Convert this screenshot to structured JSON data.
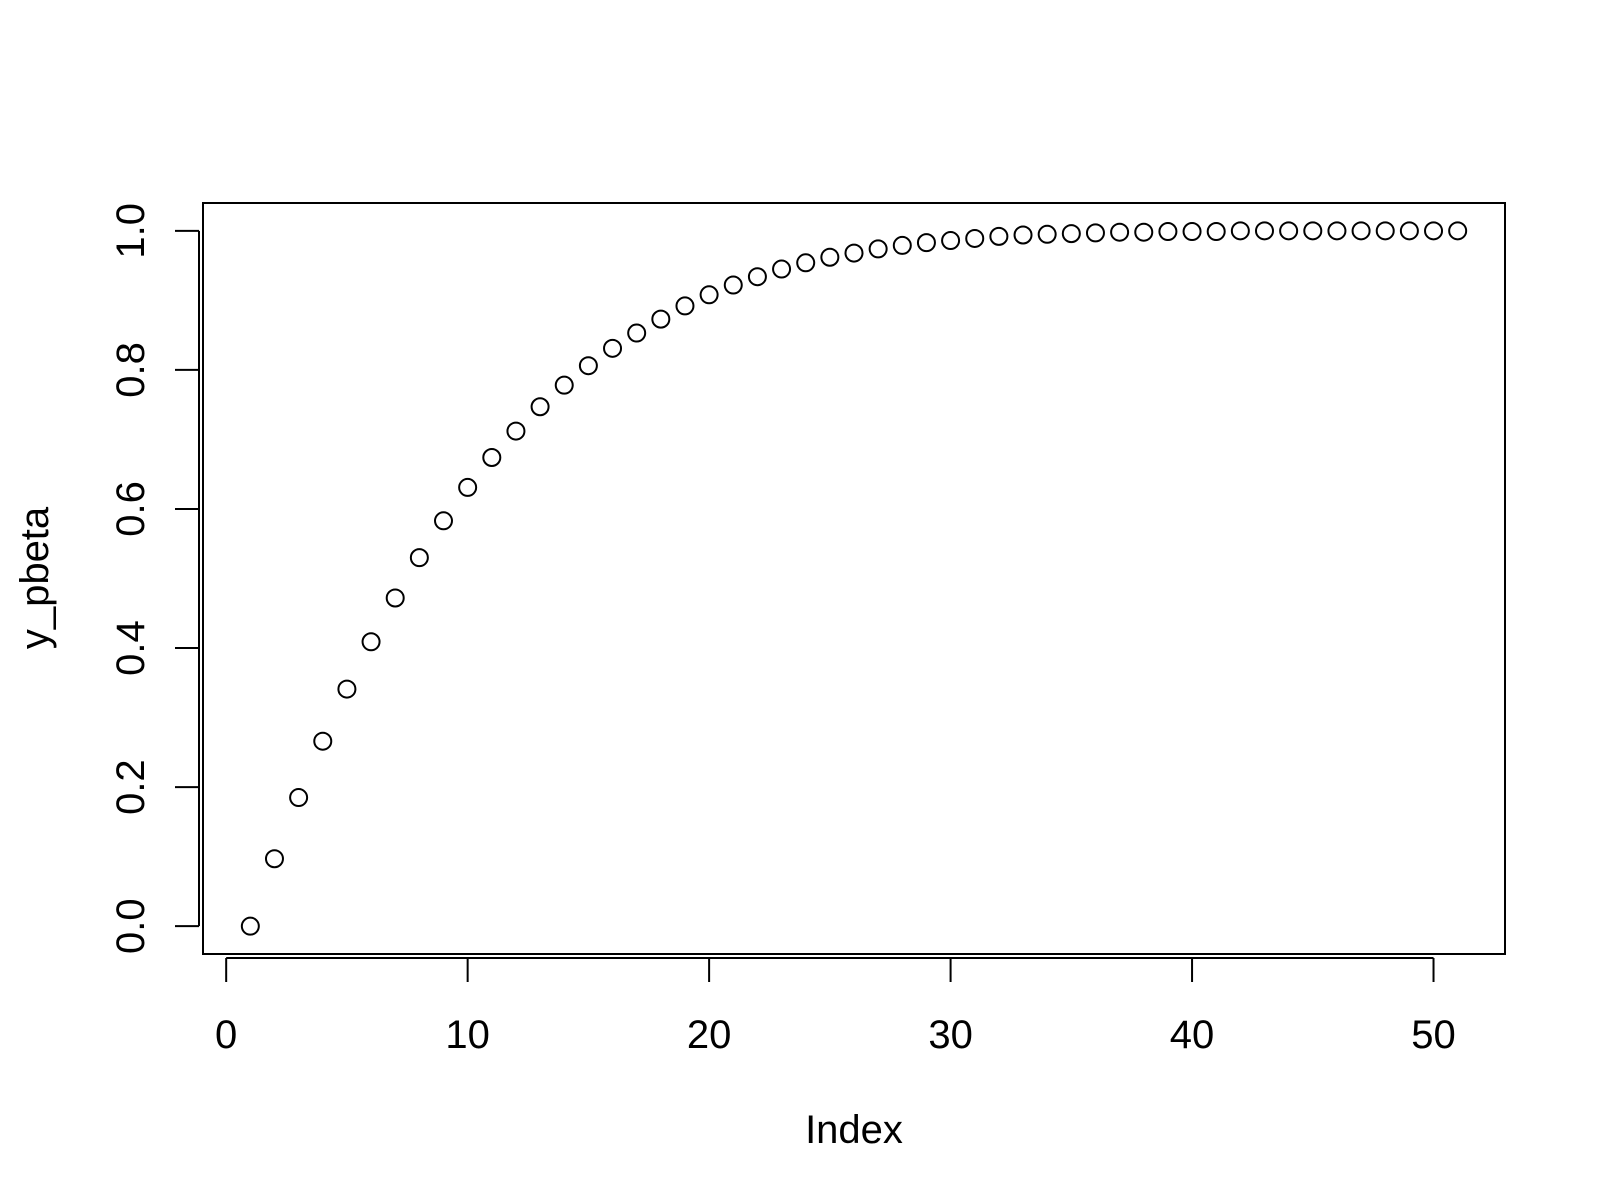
{
  "chart_data": {
    "type": "scatter",
    "xlabel": "Index",
    "ylabel": "y_pbeta",
    "xlim": [
      -0.96,
      52.96
    ],
    "ylim": [
      -0.04,
      1.04
    ],
    "x_ticks": [
      0,
      10,
      20,
      30,
      40,
      50
    ],
    "x_tick_labels": [
      "0",
      "10",
      "20",
      "30",
      "40",
      "50"
    ],
    "y_ticks": [
      0,
      0.2,
      0.4,
      0.6,
      0.8,
      1.0
    ],
    "y_tick_labels": [
      "0.0",
      "0.2",
      "0.4",
      "0.6",
      "0.8",
      "1.0"
    ],
    "grid": false,
    "marker": "open-circle",
    "color": "#000000",
    "series": [
      {
        "x": [
          1,
          2,
          3,
          4,
          5,
          6,
          7,
          8,
          9,
          10,
          11,
          12,
          13,
          14,
          15,
          16,
          17,
          18,
          19,
          20,
          21,
          22,
          23,
          24,
          25,
          26,
          27,
          28,
          29,
          30,
          31,
          32,
          33,
          34,
          35,
          36,
          37,
          38,
          39,
          40,
          41,
          42,
          43,
          44,
          45,
          46,
          47,
          48,
          49,
          50,
          51
        ],
        "values": [
          0.0,
          0.097,
          0.185,
          0.266,
          0.341,
          0.409,
          0.472,
          0.53,
          0.583,
          0.631,
          0.674,
          0.712,
          0.747,
          0.778,
          0.806,
          0.831,
          0.853,
          0.873,
          0.892,
          0.908,
          0.922,
          0.934,
          0.945,
          0.954,
          0.962,
          0.968,
          0.974,
          0.979,
          0.983,
          0.986,
          0.989,
          0.992,
          0.994,
          0.995,
          0.996,
          0.997,
          0.998,
          0.998,
          0.999,
          0.999,
          0.999,
          1.0,
          1.0,
          1.0,
          1.0,
          1.0,
          1.0,
          1.0,
          1.0,
          1.0,
          1.0
        ]
      }
    ]
  }
}
